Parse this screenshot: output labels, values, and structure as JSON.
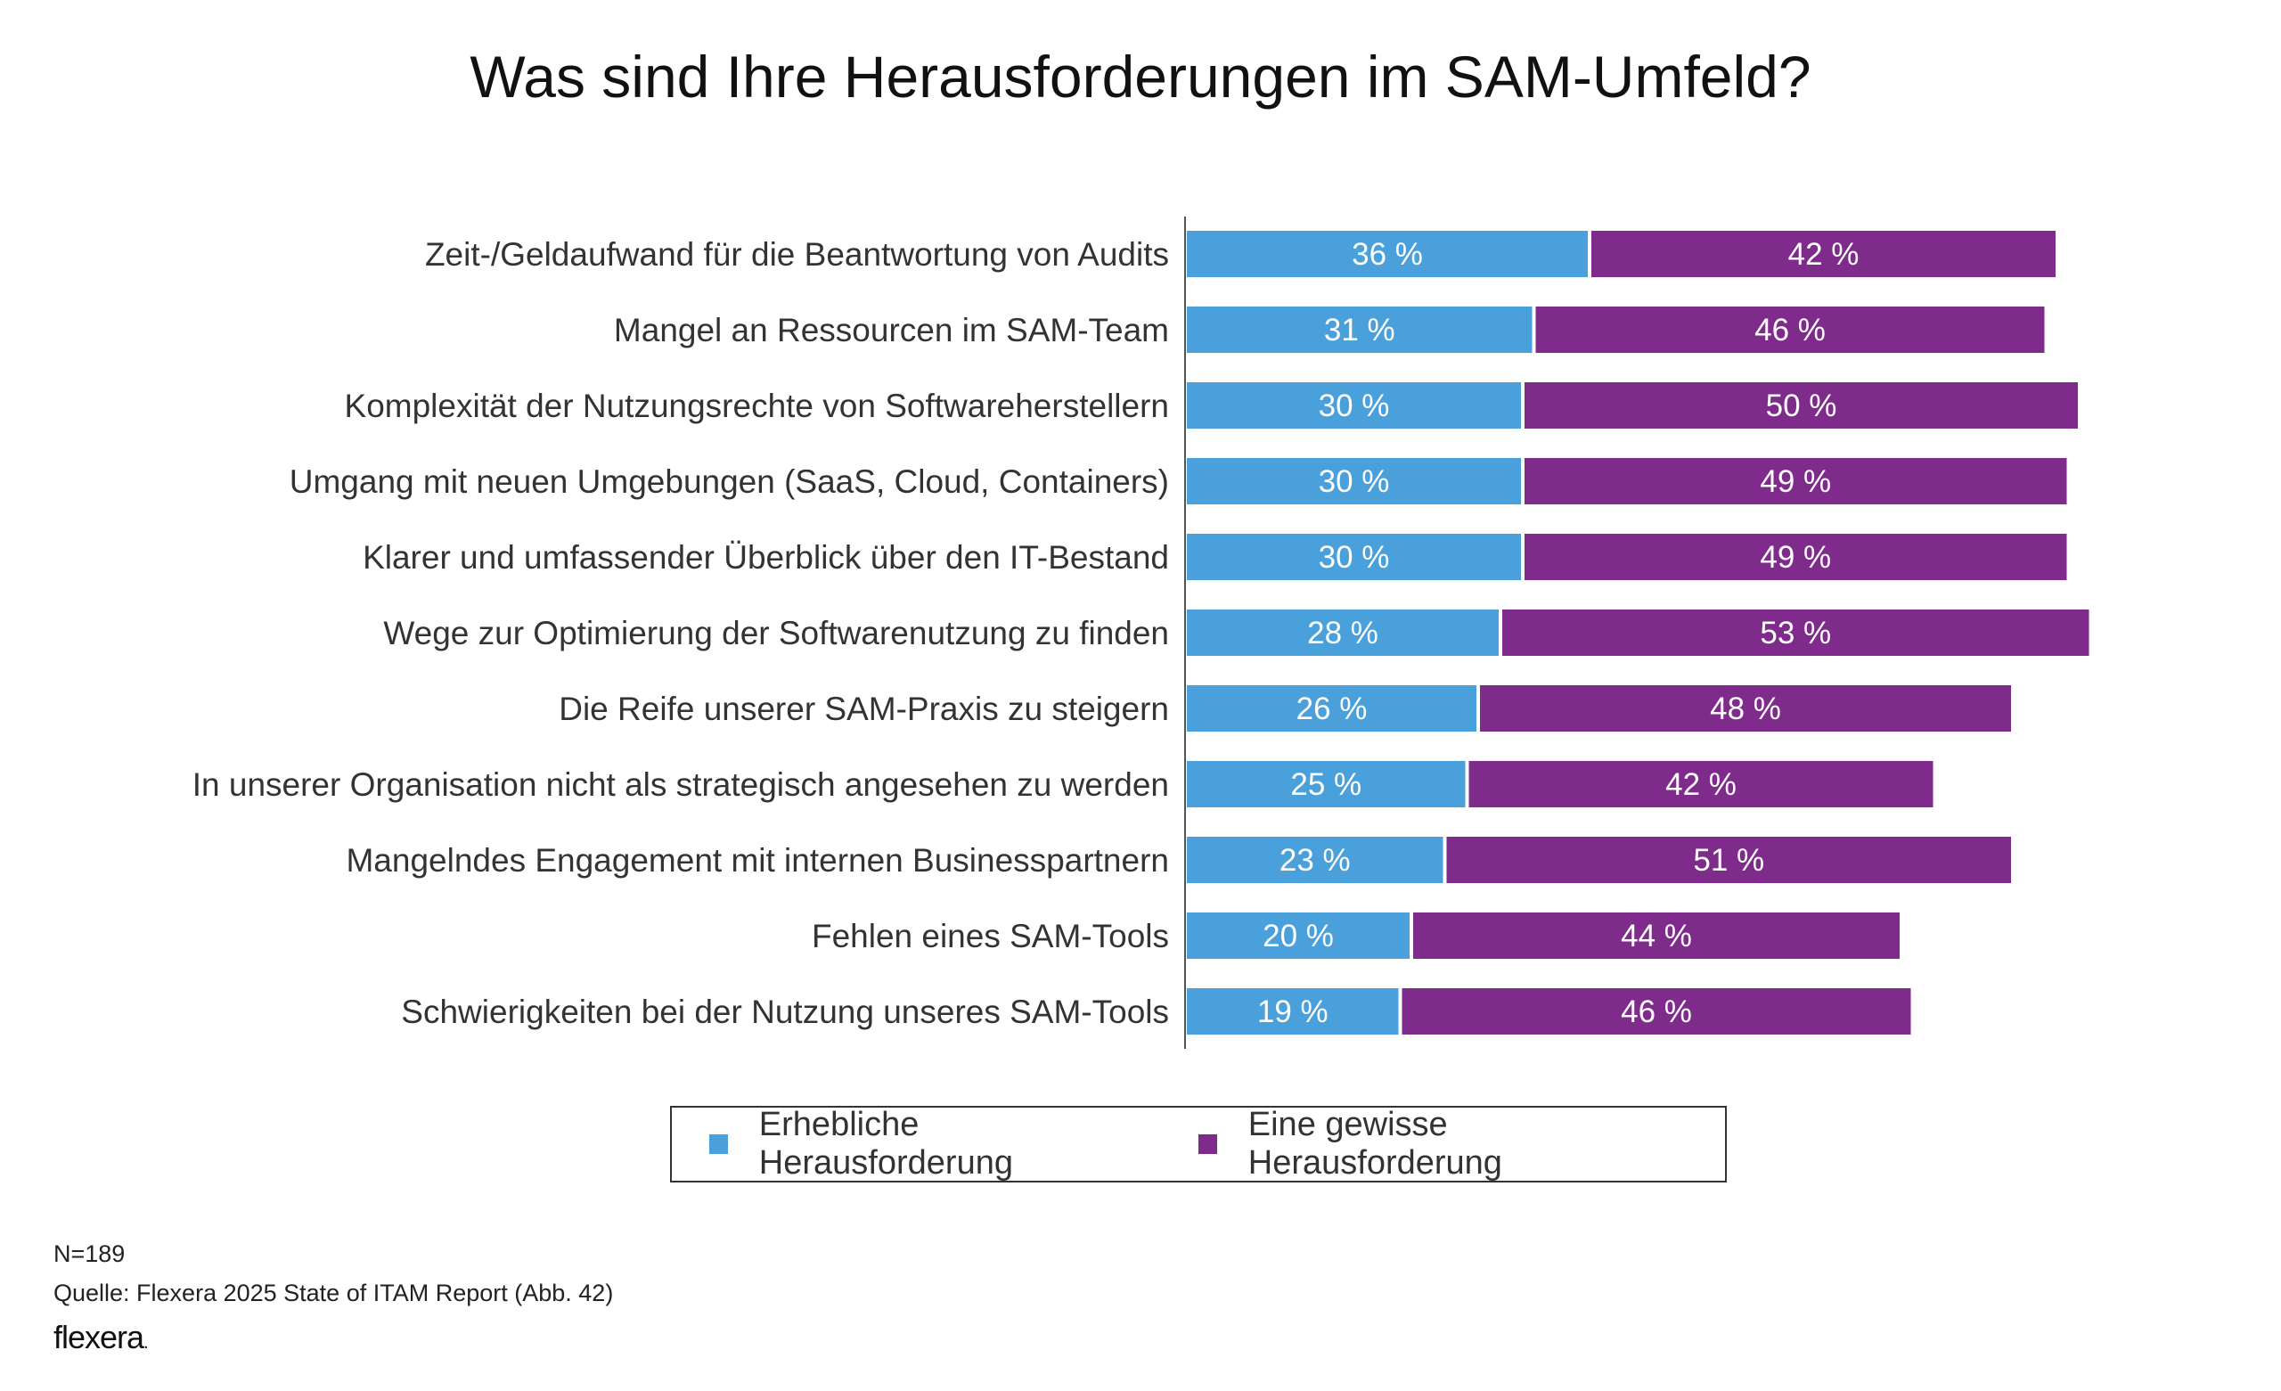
{
  "chart_data": {
    "type": "bar",
    "orientation": "horizontal",
    "stacked": true,
    "title": "Was sind Ihre Herausforderungen im SAM-Umfeld?",
    "categories": [
      "Zeit-/Geldaufwand für die Beantwortung von Audits",
      "Mangel an Ressourcen im SAM-Team",
      "Komplexität der Nutzungsrechte von Softwareherstellern",
      "Umgang mit neuen Umgebungen (SaaS, Cloud, Containers)",
      "Klarer und umfassender Überblick über den IT-Bestand",
      "Wege zur Optimierung der Softwarenutzung zu finden",
      "Die Reife unserer SAM-Praxis zu steigern",
      "In unserer Organisation nicht als strategisch angesehen zu werden",
      "Mangelndes Engagement mit internen Businesspartnern",
      "Fehlen eines SAM-Tools",
      "Schwierigkeiten bei der Nutzung unseres SAM-Tools"
    ],
    "series": [
      {
        "name": "Erhebliche Herausforderung",
        "color": "#4aa0db",
        "values": [
          36,
          31,
          30,
          30,
          30,
          28,
          26,
          25,
          23,
          20,
          19
        ],
        "labels": [
          "36 %",
          "31 %",
          "30 %",
          "30 %",
          "30 %",
          "28 %",
          "26 %",
          "25 %",
          "23 %",
          "20 %",
          "19 %"
        ]
      },
      {
        "name": "Eine gewisse Herausforderung",
        "color": "#7f2b8c",
        "values": [
          42,
          46,
          50,
          49,
          49,
          53,
          48,
          42,
          51,
          44,
          46
        ],
        "labels": [
          "42 %",
          "46 %",
          "50 %",
          "49 %",
          "49 %",
          "53 %",
          "48 %",
          "42 %",
          "51 %",
          "44 %",
          "46 %"
        ]
      }
    ],
    "xlabel": "",
    "ylabel": "",
    "legend_position": "bottom-center",
    "grid": false
  },
  "footer": {
    "sample_size": "N=189",
    "source": "Quelle: Flexera 2025 State of ITAM Report (Abb. 42)",
    "brand": "flexera",
    "brand_dot": "."
  }
}
